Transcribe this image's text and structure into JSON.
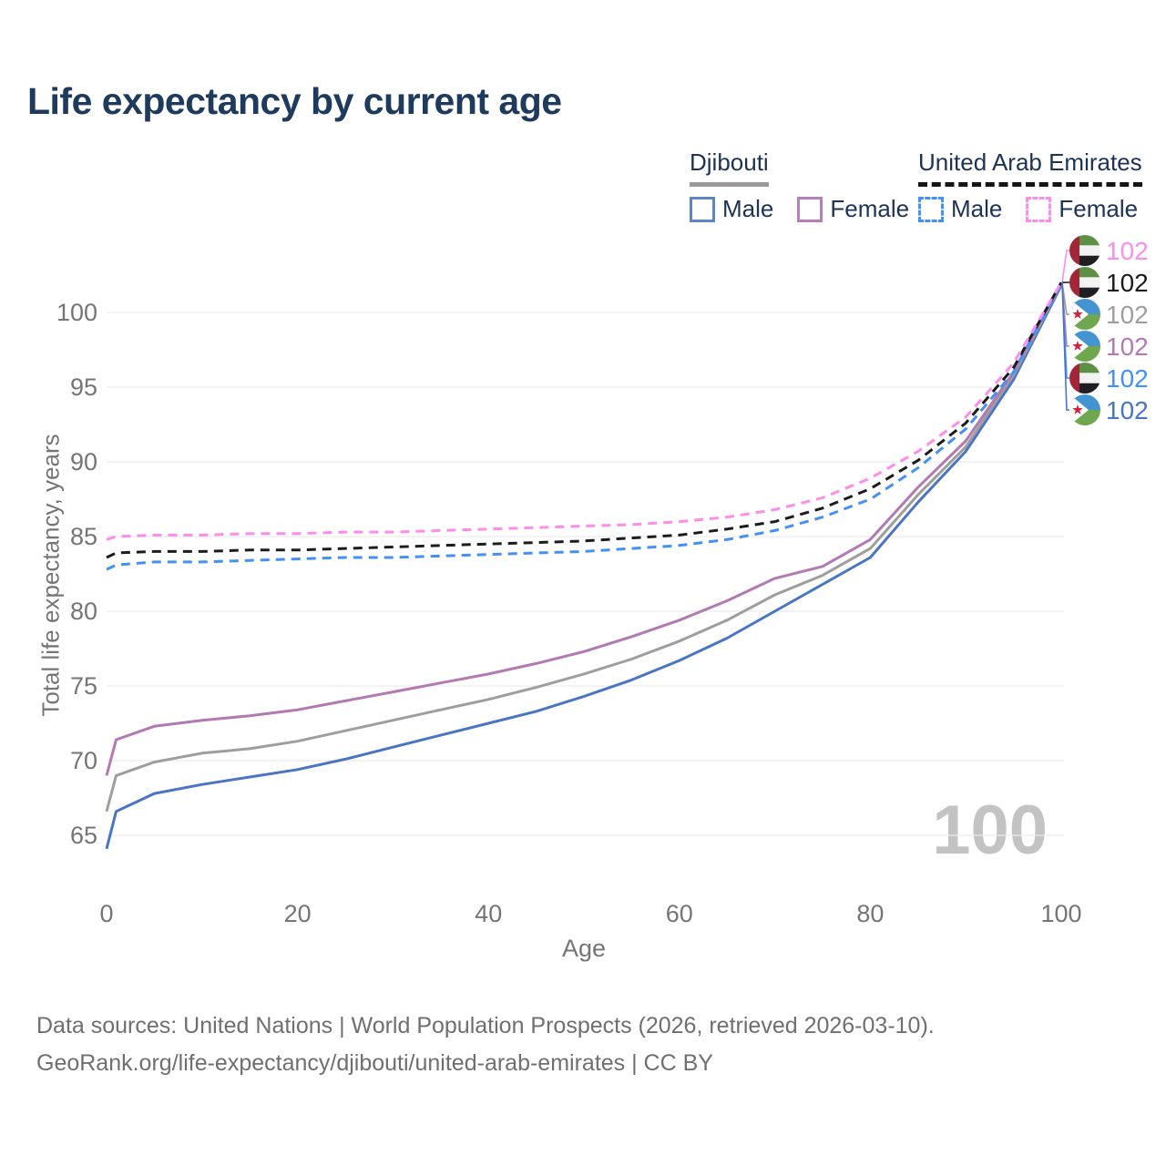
{
  "title": "Life expectancy by current age",
  "legend": {
    "djibouti": {
      "label": "Djibouti",
      "items": [
        {
          "label": "Male"
        },
        {
          "label": "Female"
        }
      ]
    },
    "uae": {
      "label": "United Arab Emirates",
      "items": [
        {
          "label": "Male"
        },
        {
          "label": "Female"
        }
      ]
    }
  },
  "watermark": "100",
  "footer": {
    "line1": "Data sources: United Nations | World Population Prospects (2026, retrieved 2026-03-10).",
    "line2": "GeoRank.org/life-expectancy/djibouti/united-arab-emirates | CC BY"
  },
  "colors": {
    "title_text": "#1e3a5c",
    "axis_text": "#757575",
    "grid": "#ececec",
    "watermark": "#c3c3c3",
    "footer_text": "#6f6f6f",
    "djibouti_male": "#4a74c4",
    "djibouti_total": "#9e9e9e",
    "djibouti_female": "#b279b3",
    "uae_male": "#4490f5",
    "uae_total": "#1c1c1c",
    "uae_female": "#fc8de9"
  },
  "chart_data": {
    "type": "line",
    "title": "Life expectancy by current age",
    "xlabel": "Age",
    "ylabel": "Total life expectancy, years",
    "xlim": [
      0,
      100
    ],
    "ylim": [
      63,
      103
    ],
    "xticks": [
      0,
      20,
      40,
      60,
      80,
      100
    ],
    "yticks": [
      65,
      70,
      75,
      80,
      85,
      90,
      95,
      100
    ],
    "grid": true,
    "legend_position": "top-right",
    "x": [
      0,
      1,
      5,
      10,
      15,
      20,
      25,
      30,
      35,
      40,
      45,
      50,
      55,
      60,
      65,
      70,
      75,
      80,
      85,
      90,
      95,
      100
    ],
    "series": [
      {
        "name": "Djibouti Male",
        "country": "Djibouti",
        "sex": "Male",
        "style": "solid",
        "color": "#4a74c4",
        "values": [
          64.1,
          66.6,
          67.8,
          68.4,
          68.9,
          69.4,
          70.1,
          70.9,
          71.7,
          72.5,
          73.3,
          74.3,
          75.4,
          76.7,
          78.2,
          80.0,
          81.8,
          83.6,
          87.3,
          90.7,
          95.5,
          101.8
        ]
      },
      {
        "name": "Djibouti Total",
        "country": "Djibouti",
        "sex": "Both",
        "style": "solid",
        "color": "#9e9e9e",
        "values": [
          66.6,
          69.0,
          69.9,
          70.5,
          70.8,
          71.3,
          72.0,
          72.7,
          73.4,
          74.1,
          74.9,
          75.8,
          76.8,
          78.0,
          79.4,
          81.1,
          82.4,
          84.2,
          87.8,
          91.0,
          95.8,
          101.9
        ]
      },
      {
        "name": "Djibouti Female",
        "country": "Djibouti",
        "sex": "Female",
        "style": "solid",
        "color": "#b279b3",
        "values": [
          69.0,
          71.4,
          72.3,
          72.7,
          73.0,
          73.4,
          74.0,
          74.6,
          75.2,
          75.8,
          76.5,
          77.3,
          78.3,
          79.4,
          80.7,
          82.2,
          83.0,
          84.8,
          88.3,
          91.4,
          96.0,
          102.0
        ]
      },
      {
        "name": "United Arab Emirates Male",
        "country": "United Arab Emirates",
        "sex": "Male",
        "style": "dashed",
        "color": "#4490f5",
        "values": [
          82.8,
          83.1,
          83.3,
          83.3,
          83.4,
          83.5,
          83.6,
          83.6,
          83.7,
          83.8,
          83.9,
          84.0,
          84.2,
          84.4,
          84.8,
          85.4,
          86.3,
          87.5,
          89.6,
          92.2,
          96.0,
          101.9
        ]
      },
      {
        "name": "United Arab Emirates Total",
        "country": "United Arab Emirates",
        "sex": "Both",
        "style": "dashed",
        "color": "#1c1c1c",
        "values": [
          83.6,
          83.9,
          84.0,
          84.0,
          84.1,
          84.1,
          84.2,
          84.3,
          84.4,
          84.5,
          84.6,
          84.7,
          84.9,
          85.1,
          85.5,
          86.0,
          86.9,
          88.2,
          90.1,
          92.6,
          96.3,
          102.0
        ]
      },
      {
        "name": "United Arab Emirates Female",
        "country": "United Arab Emirates",
        "sex": "Female",
        "style": "dashed",
        "color": "#fc8de9",
        "values": [
          84.8,
          85.0,
          85.1,
          85.1,
          85.2,
          85.2,
          85.3,
          85.3,
          85.4,
          85.5,
          85.6,
          85.7,
          85.8,
          86.0,
          86.3,
          86.8,
          87.6,
          88.9,
          90.7,
          93.0,
          96.6,
          102.0
        ]
      }
    ],
    "end_labels": [
      {
        "series": "United Arab Emirates Female",
        "value": "102",
        "color": "#fc8de9",
        "flag": "ae"
      },
      {
        "series": "United Arab Emirates Total",
        "value": "102",
        "color": "#1c1c1c",
        "flag": "ae"
      },
      {
        "series": "Djibouti Total",
        "value": "102",
        "color": "#9e9e9e",
        "flag": "dj"
      },
      {
        "series": "Djibouti Female",
        "value": "102",
        "color": "#b279b3",
        "flag": "dj"
      },
      {
        "series": "United Arab Emirates Male",
        "value": "102",
        "color": "#4490f5",
        "flag": "ae"
      },
      {
        "series": "Djibouti Male",
        "value": "102",
        "color": "#4a74c4",
        "flag": "dj"
      }
    ]
  }
}
